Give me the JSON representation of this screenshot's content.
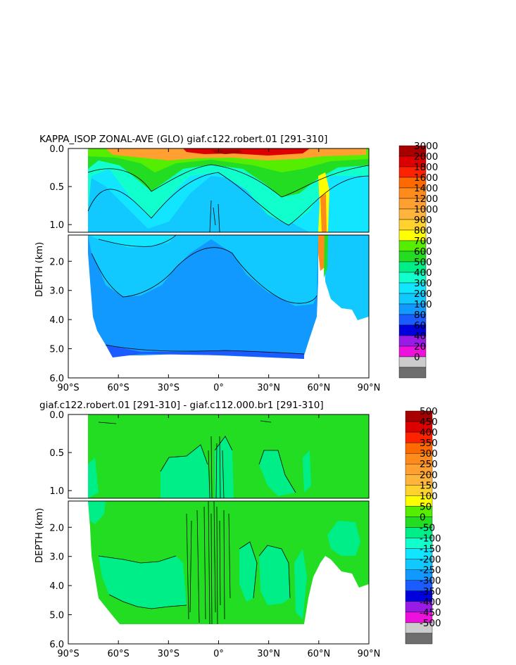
{
  "chart_data": [
    {
      "type": "heatmap",
      "title": "KAPPA_ISOP ZONAL-AVE (GLO) giaf.c122.robert.01 [291-310]",
      "ylabel": "DEPTH (km)",
      "xlabel": "",
      "x_ticks": [
        "90°S",
        "60°S",
        "30°S",
        "0°",
        "30°N",
        "60°N",
        "90°N"
      ],
      "y_ticks_upper": [
        "0.0",
        "0.5",
        "1.0"
      ],
      "y_ticks_lower": [
        "2.0",
        "3.0",
        "4.0",
        "5.0",
        "6.0"
      ],
      "xlim": [
        -90,
        90
      ],
      "ylim_upper": [
        0,
        1.1
      ],
      "ylim_lower": [
        1.1,
        6.0
      ],
      "colorbar": [
        {
          "label": "3000",
          "color": "#a80000"
        },
        {
          "label": "2000",
          "color": "#dd0000"
        },
        {
          "label": "1800",
          "color": "#ff2200"
        },
        {
          "label": "1600",
          "color": "#ff6a00"
        },
        {
          "label": "1400",
          "color": "#ff8c1a"
        },
        {
          "label": "1200",
          "color": "#ffa030"
        },
        {
          "label": "1000",
          "color": "#ffb43c"
        },
        {
          "label": "900",
          "color": "#ffd22e"
        },
        {
          "label": "800",
          "color": "#ffff00"
        },
        {
          "label": "700",
          "color": "#55ee00"
        },
        {
          "label": "600",
          "color": "#22dd22"
        },
        {
          "label": "500",
          "color": "#00ee88"
        },
        {
          "label": "400",
          "color": "#11ffcc"
        },
        {
          "label": "300",
          "color": "#11e5ff"
        },
        {
          "label": "200",
          "color": "#11c8ff"
        },
        {
          "label": "100",
          "color": "#1199ff"
        },
        {
          "label": "80",
          "color": "#1a5cff"
        },
        {
          "label": "60",
          "color": "#0000dd"
        },
        {
          "label": "40",
          "color": "#9a1ae6"
        },
        {
          "label": "20",
          "color": "#ee11dd"
        },
        {
          "label": "0",
          "color": "#cccccc"
        },
        {
          "label": "",
          "color": "#6e6e6e"
        }
      ]
    },
    {
      "type": "heatmap",
      "title": "giaf.c122.robert.01 [291-310] - giaf.c112.000.br1 [291-310]",
      "ylabel": "DEPTH (km)",
      "xlabel": "",
      "x_ticks": [
        "90°S",
        "60°S",
        "30°S",
        "0°",
        "30°N",
        "60°N",
        "90°N"
      ],
      "y_ticks_upper": [
        "0.0",
        "0.5",
        "1.0"
      ],
      "y_ticks_lower": [
        "2.0",
        "3.0",
        "4.0",
        "5.0",
        "6.0"
      ],
      "xlim": [
        -90,
        90
      ],
      "ylim_upper": [
        0,
        1.1
      ],
      "ylim_lower": [
        1.1,
        6.0
      ],
      "colorbar": [
        {
          "label": "500",
          "color": "#a80000"
        },
        {
          "label": "450",
          "color": "#dd0000"
        },
        {
          "label": "400",
          "color": "#ff2200"
        },
        {
          "label": "350",
          "color": "#ff6a00"
        },
        {
          "label": "300",
          "color": "#ff8c1a"
        },
        {
          "label": "250",
          "color": "#ffa030"
        },
        {
          "label": "200",
          "color": "#ffb43c"
        },
        {
          "label": "150",
          "color": "#ffd22e"
        },
        {
          "label": "100",
          "color": "#ffff00"
        },
        {
          "label": "50",
          "color": "#55ee00"
        },
        {
          "label": "0",
          "color": "#22dd22"
        },
        {
          "label": "-50",
          "color": "#00ee88"
        },
        {
          "label": "-100",
          "color": "#11ffcc"
        },
        {
          "label": "-150",
          "color": "#11e5ff"
        },
        {
          "label": "-200",
          "color": "#11c8ff"
        },
        {
          "label": "-250",
          "color": "#1199ff"
        },
        {
          "label": "-300",
          "color": "#1a5cff"
        },
        {
          "label": "-350",
          "color": "#0000dd"
        },
        {
          "label": "-400",
          "color": "#9a1ae6"
        },
        {
          "label": "-450",
          "color": "#ee11dd"
        },
        {
          "label": "-500",
          "color": "#cccccc"
        },
        {
          "label": "",
          "color": "#6e6e6e"
        }
      ]
    }
  ]
}
